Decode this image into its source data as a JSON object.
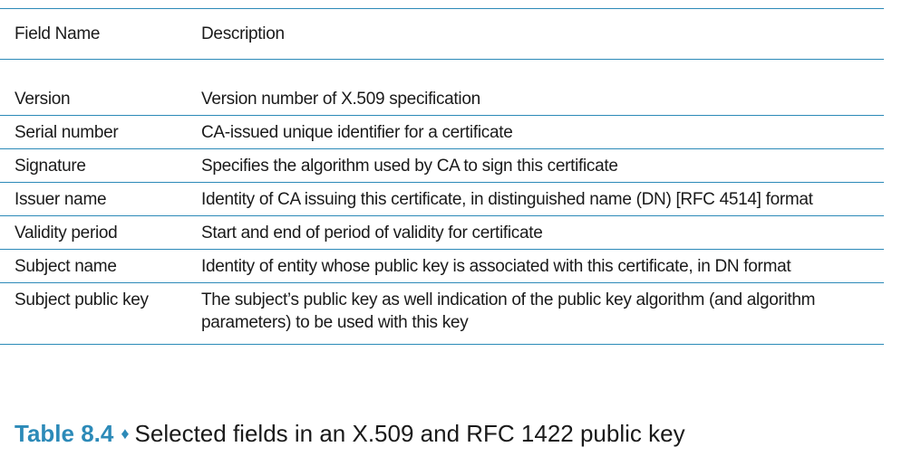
{
  "table": {
    "headers": {
      "field_name": "Field Name",
      "description": "Description"
    },
    "rows": [
      {
        "name": "Version",
        "desc": "Version number of X.509 specification"
      },
      {
        "name": "Serial number",
        "desc": "CA-issued unique identifier for a certificate"
      },
      {
        "name": "Signature",
        "desc": "Specifies the algorithm used by CA to sign this certificate"
      },
      {
        "name": "Issuer name",
        "desc": "Identity of CA issuing this certificate, in distinguished name (DN) [RFC 4514] format"
      },
      {
        "name": "Validity period",
        "desc": "Start and end of period of validity for certificate"
      },
      {
        "name": "Subject name",
        "desc": "Identity of entity whose public key is associated with this certificate, in DN format"
      },
      {
        "name": "Subject public key",
        "desc": "The subject’s public key as well indication of the public key algorithm (and algorithm parameters) to be used with this key"
      }
    ]
  },
  "caption": {
    "label": "Table 8.4",
    "separator": "♦",
    "text": "Selected fields in an X.509 and RFC 1422 public key"
  },
  "colors": {
    "accent": "#2c8ab8"
  }
}
